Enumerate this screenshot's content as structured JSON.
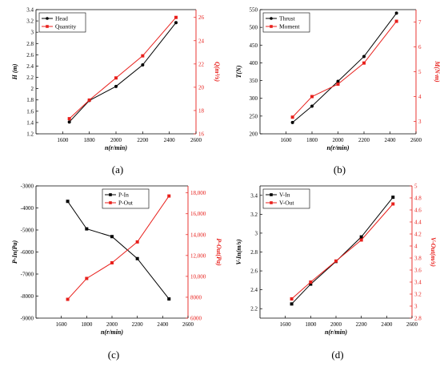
{
  "chart_data": [
    {
      "type": "line",
      "panel_label": "(a)",
      "xlabel": "n(r/min)",
      "ylabel_left": "H  (m)",
      "ylabel_right": "Q(m³/s)",
      "xlim": [
        1400,
        2600
      ],
      "xticks": [
        1600,
        1800,
        2000,
        2200,
        2400,
        2600
      ],
      "ylim_left": [
        1.2,
        3.4
      ],
      "yticks_left": [
        1.2,
        1.4,
        1.6,
        1.8,
        2.0,
        2.2,
        2.4,
        2.6,
        2.8,
        3.0,
        3.2,
        3.4
      ],
      "ylim_right": [
        16,
        26.67
      ],
      "yticks_right": [
        16,
        18,
        20,
        22,
        24,
        26
      ],
      "legend_position": "top-left",
      "series": [
        {
          "name": "Head",
          "axis": "left",
          "color": "#000000",
          "marker": "circle",
          "x": [
            1650,
            1800,
            2000,
            2200,
            2450
          ],
          "values": [
            1.41,
            1.79,
            2.04,
            2.42,
            3.17
          ]
        },
        {
          "name": "Quantity",
          "axis": "right",
          "color": "#e8201c",
          "marker": "square",
          "x": [
            1650,
            1800,
            2000,
            2200,
            2450
          ],
          "values": [
            17.3,
            18.9,
            20.8,
            22.7,
            26.0
          ]
        }
      ]
    },
    {
      "type": "line",
      "panel_label": "(b)",
      "xlabel": "n(r/min)",
      "ylabel_left": "T(N)",
      "ylabel_right": "M(N·m)",
      "xlim": [
        1400,
        2600
      ],
      "xticks": [
        1600,
        1800,
        2000,
        2200,
        2400,
        2600
      ],
      "ylim_left": [
        200,
        550
      ],
      "yticks_left": [
        200,
        250,
        300,
        350,
        400,
        450,
        500,
        550
      ],
      "ylim_right": [
        2.5,
        7.5
      ],
      "yticks_right": [
        3,
        4,
        5,
        6,
        7
      ],
      "legend_position": "top-left",
      "series": [
        {
          "name": "Thrust",
          "axis": "left",
          "color": "#000000",
          "marker": "circle",
          "x": [
            1650,
            1800,
            2000,
            2200,
            2450
          ],
          "values": [
            232,
            278,
            348,
            418,
            540
          ]
        },
        {
          "name": "Moment",
          "axis": "right",
          "color": "#e8201c",
          "marker": "square",
          "x": [
            1650,
            1800,
            2000,
            2200,
            2450
          ],
          "values": [
            3.17,
            4.0,
            4.5,
            5.35,
            7.03
          ]
        }
      ]
    },
    {
      "type": "line",
      "panel_label": "(c)",
      "xlabel": "n(r/min)",
      "ylabel_left": "P-In(Pa)",
      "ylabel_right": "P-Out(Pa)",
      "xlim": [
        1400,
        2600
      ],
      "xticks": [
        1600,
        1800,
        2000,
        2200,
        2400,
        2600
      ],
      "ylim_left": [
        -9000,
        -3000
      ],
      "yticks_left": [
        -9000,
        -8000,
        -7000,
        -6000,
        -5000,
        -4000,
        -3000
      ],
      "ylim_right": [
        6000,
        18667
      ],
      "yticks_right": [
        6000,
        8000,
        10000,
        12000,
        14000,
        16000,
        18000
      ],
      "ytick_labels_right": [
        "6000",
        "8000",
        "10,000",
        "12,000",
        "14,000",
        "16,000",
        "18,000"
      ],
      "legend_position": "top-center",
      "series": [
        {
          "name": "P-In",
          "axis": "left",
          "color": "#000000",
          "marker": "square",
          "x": [
            1650,
            1800,
            2000,
            2200,
            2450
          ],
          "values": [
            -3700,
            -4950,
            -5300,
            -6300,
            -8130
          ]
        },
        {
          "name": "P-Out",
          "axis": "right",
          "color": "#e8201c",
          "marker": "square",
          "x": [
            1650,
            1800,
            2000,
            2200,
            2450
          ],
          "values": [
            7800,
            9800,
            11300,
            13300,
            17700
          ]
        }
      ]
    },
    {
      "type": "line",
      "panel_label": "(d)",
      "xlabel": "n(r/min)",
      "ylabel_left": "V-In(m/s)",
      "ylabel_right": "V-Out(m/s)",
      "xlim": [
        1400,
        2600
      ],
      "xticks": [
        1600,
        1800,
        2000,
        2200,
        2400,
        2600
      ],
      "ylim_left": [
        2.1,
        3.5
      ],
      "yticks_left": [
        2.2,
        2.4,
        2.6,
        2.8,
        3.0,
        3.2,
        3.4
      ],
      "ylim_right": [
        2.8,
        5.0
      ],
      "yticks_right": [
        2.8,
        3.0,
        3.2,
        3.4,
        3.6,
        3.8,
        4.0,
        4.2,
        4.4,
        4.6,
        4.8,
        5.0
      ],
      "legend_position": "top-left",
      "series": [
        {
          "name": "V-In",
          "axis": "left",
          "color": "#000000",
          "marker": "square",
          "x": [
            1650,
            1800,
            2000,
            2200,
            2450
          ],
          "values": [
            2.25,
            2.46,
            2.7,
            2.96,
            3.38
          ]
        },
        {
          "name": "V-Out",
          "axis": "right",
          "color": "#e8201c",
          "marker": "square",
          "x": [
            1650,
            1800,
            2000,
            2200,
            2450
          ],
          "values": [
            3.12,
            3.4,
            3.75,
            4.1,
            4.7
          ]
        }
      ]
    }
  ]
}
